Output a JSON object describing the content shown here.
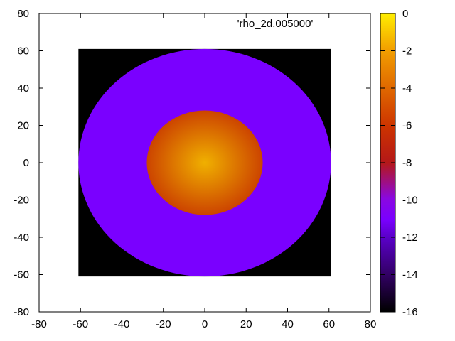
{
  "chart_data": {
    "type": "heatmap",
    "legend_label": "'rho_2d.005000'",
    "x_ticks": [
      -80,
      -60,
      -40,
      -20,
      0,
      20,
      40,
      60,
      80
    ],
    "y_ticks": [
      -80,
      -60,
      -40,
      -20,
      0,
      20,
      40,
      60,
      80
    ],
    "xlim": [
      -80,
      80
    ],
    "ylim": [
      -80,
      80
    ],
    "colorbar": {
      "range": [
        -16,
        0
      ],
      "ticks": [
        0,
        -2,
        -4,
        -6,
        -8,
        -10,
        -12,
        -14,
        -16
      ]
    },
    "data_extent": {
      "x": [
        -61,
        61
      ],
      "y": [
        -61,
        61
      ]
    },
    "background_value": -16,
    "regions": [
      {
        "name": "outer disk",
        "radius_x": 61,
        "radius_y": 61,
        "value": -11.8
      },
      {
        "name": "inner core",
        "radius_x": 28,
        "radius_y": 28,
        "center_value": -2.2,
        "edge_value": -5.2
      }
    ],
    "colors": {
      "outer_disk": "#7a00ff",
      "core_center": "#f0b000",
      "core_edge": "#cc4400",
      "background": "#000000"
    }
  }
}
